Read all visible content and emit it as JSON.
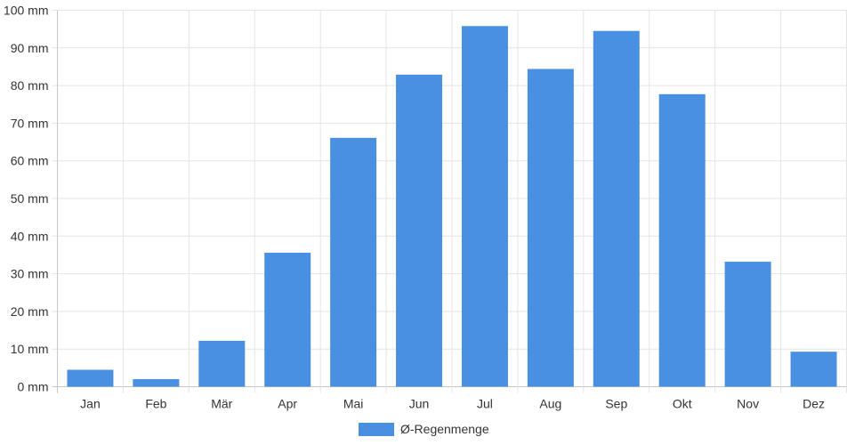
{
  "chart_data": {
    "type": "bar",
    "categories": [
      "Jan",
      "Feb",
      "Mär",
      "Apr",
      "Mai",
      "Jun",
      "Jul",
      "Aug",
      "Sep",
      "Okt",
      "Nov",
      "Dez"
    ],
    "series": [
      {
        "name": "Ø-Regenmenge",
        "values": [
          4.5,
          2.0,
          12.2,
          35.6,
          66.1,
          82.9,
          95.8,
          84.4,
          94.5,
          77.7,
          33.2,
          9.3
        ],
        "color": "#4a90e2"
      }
    ],
    "y_ticks": [
      "0 mm",
      "10 mm",
      "20 mm",
      "30 mm",
      "40 mm",
      "50 mm",
      "60 mm",
      "70 mm",
      "80 mm",
      "90 mm",
      "100 mm"
    ],
    "ylim": [
      0,
      100
    ],
    "grid": true,
    "legend_position": "bottom-center",
    "title": "",
    "xlabel": "",
    "ylabel": ""
  }
}
